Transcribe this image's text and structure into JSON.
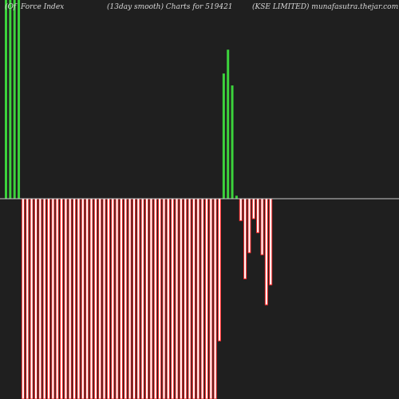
{
  "header": {
    "left": "Force  Index",
    "left_prefix": "(Of",
    "center": "(13day smooth) Charts for 519421",
    "right": "(KSE LIMITED) munafasutra.thejar.com"
  },
  "colors": {
    "background": "#1f1f1f",
    "positive": "#3cd33c",
    "negative": "#ff2a2a",
    "zero_line": "#c8c8c8",
    "text": "#d8d8d8"
  },
  "chart_data": {
    "type": "bar",
    "ylim": [
      -100,
      100
    ],
    "values": [
      100,
      100,
      100,
      100,
      -100,
      -100,
      -100,
      -100,
      -100,
      -100,
      -100,
      -100,
      -100,
      -100,
      -100,
      -100,
      -100,
      -100,
      -100,
      -100,
      -100,
      -100,
      -100,
      -100,
      -100,
      -100,
      -100,
      -100,
      -100,
      -100,
      -100,
      -100,
      -100,
      -100,
      -100,
      -100,
      -100,
      -100,
      -100,
      -100,
      -100,
      -100,
      -100,
      -100,
      -100,
      -100,
      -100,
      -100,
      -100,
      -100,
      -71,
      63,
      75,
      57,
      1.5,
      -11,
      -40,
      -27,
      -10,
      -17,
      -28,
      -53,
      -43
    ]
  }
}
